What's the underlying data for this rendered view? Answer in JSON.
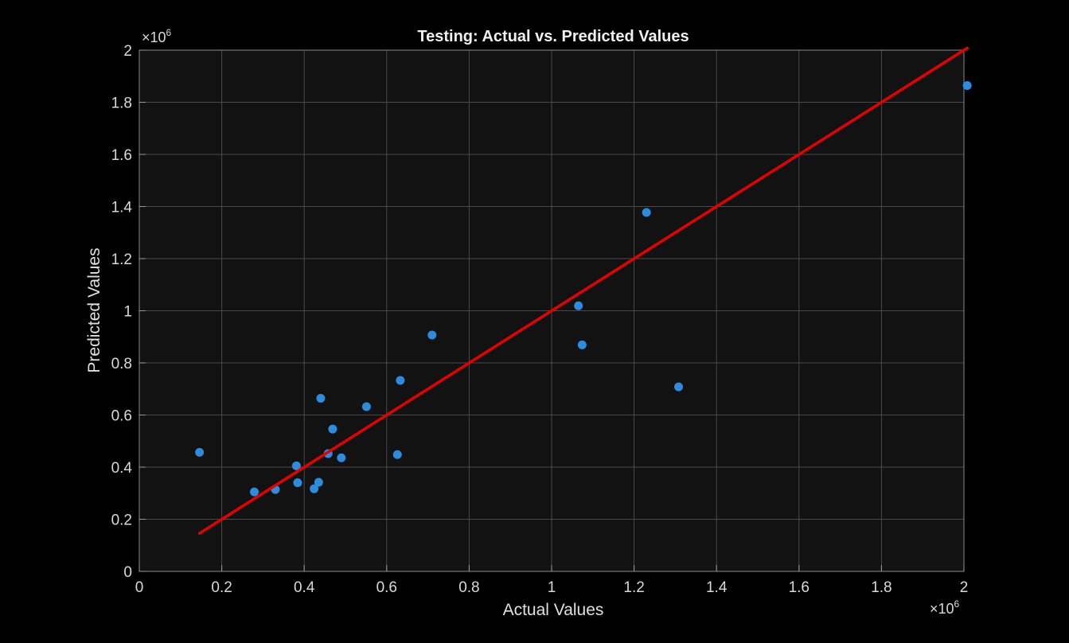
{
  "chart_data": {
    "type": "scatter",
    "title": "Testing: Actual vs. Predicted Values",
    "xlabel": "Actual Values",
    "ylabel": "Predicted Values",
    "x_exponent": {
      "base": "×10",
      "power": "6"
    },
    "y_exponent": {
      "base": "×10",
      "power": "6"
    },
    "xlim": [
      0,
      2
    ],
    "ylim": [
      0,
      2
    ],
    "grid": true,
    "x_ticks": [
      "0",
      "0.2",
      "0.4",
      "0.6",
      "0.8",
      "1",
      "1.2",
      "1.4",
      "1.6",
      "1.8",
      "2"
    ],
    "y_ticks": [
      "0",
      "0.2",
      "0.4",
      "0.6",
      "0.8",
      "1",
      "1.2",
      "1.4",
      "1.6",
      "1.8",
      "2"
    ],
    "x_tick_values": [
      0,
      0.2,
      0.4,
      0.6,
      0.8,
      1.0,
      1.2,
      1.4,
      1.6,
      1.8,
      2.0
    ],
    "y_tick_values": [
      0,
      0.2,
      0.4,
      0.6,
      0.8,
      1.0,
      1.2,
      1.4,
      1.6,
      1.8,
      2.0
    ],
    "colors": {
      "points": "#2b8ce0",
      "fit_line": "#e50000",
      "background": "#121212",
      "grid": "#4a4a4a"
    },
    "points": [
      {
        "x": 0.146,
        "y": 0.457
      },
      {
        "x": 0.279,
        "y": 0.305
      },
      {
        "x": 0.33,
        "y": 0.314
      },
      {
        "x": 0.381,
        "y": 0.405
      },
      {
        "x": 0.384,
        "y": 0.34
      },
      {
        "x": 0.424,
        "y": 0.317
      },
      {
        "x": 0.435,
        "y": 0.342
      },
      {
        "x": 0.44,
        "y": 0.664
      },
      {
        "x": 0.458,
        "y": 0.452
      },
      {
        "x": 0.469,
        "y": 0.546
      },
      {
        "x": 0.49,
        "y": 0.436
      },
      {
        "x": 0.551,
        "y": 0.632
      },
      {
        "x": 0.626,
        "y": 0.448
      },
      {
        "x": 0.633,
        "y": 0.733
      },
      {
        "x": 0.71,
        "y": 0.907
      },
      {
        "x": 1.065,
        "y": 1.019
      },
      {
        "x": 1.074,
        "y": 0.869
      },
      {
        "x": 1.23,
        "y": 1.377
      },
      {
        "x": 1.308,
        "y": 0.708
      },
      {
        "x": 2.008,
        "y": 1.864
      }
    ],
    "fit_line": {
      "x": [
        0.146,
        2.008
      ],
      "y": [
        0.146,
        2.008
      ]
    }
  }
}
